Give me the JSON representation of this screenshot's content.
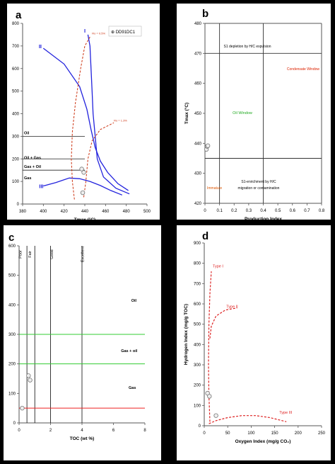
{
  "chart_data": [
    {
      "type": "line",
      "panel_label": "a",
      "xlabel": "Tmax (°C)",
      "ylabel": "Hydrogen Index (mg/g TOC)",
      "xlim": [
        380,
        500
      ],
      "ylim": [
        0,
        800
      ],
      "xticks": [
        "380",
        "400",
        "420",
        "440",
        "460",
        "480",
        "500"
      ],
      "yticks": [
        "0",
        "100",
        "200",
        "300",
        "400",
        "500",
        "600",
        "700",
        "800"
      ],
      "legend": "⊕ DD91DC1",
      "series": [
        {
          "name": "I",
          "color": "#2222dd",
          "points": [
            [
              443,
              750
            ],
            [
              445,
              700
            ],
            [
              446,
              600
            ],
            [
              447,
              500
            ],
            [
              448,
              400
            ],
            [
              450,
              300
            ],
            [
              452,
              200
            ],
            [
              458,
              120
            ],
            [
              470,
              70
            ],
            [
              483,
              45
            ]
          ]
        },
        {
          "name": "II",
          "color": "#2222dd",
          "points": [
            [
              400,
              690
            ],
            [
              420,
              620
            ],
            [
              435,
              520
            ],
            [
              442,
              420
            ],
            [
              446,
              330
            ],
            [
              450,
              250
            ],
            [
              455,
              190
            ],
            [
              462,
              140
            ],
            [
              472,
              90
            ],
            [
              482,
              60
            ]
          ]
        },
        {
          "name": "III",
          "color": "#2222dd",
          "points": [
            [
              400,
              80
            ],
            [
              412,
              95
            ],
            [
              425,
              115
            ],
            [
              435,
              112
            ],
            [
              445,
              100
            ],
            [
              455,
              82
            ],
            [
              465,
              60
            ],
            [
              476,
              40
            ]
          ]
        }
      ],
      "iso_lines": [
        {
          "label": "Ro = 0.5%",
          "color": "#cc3311",
          "points": [
            [
              430,
              20
            ],
            [
              428,
              100
            ],
            [
              427,
              200
            ],
            [
              428,
              320
            ],
            [
              431,
              450
            ],
            [
              436,
              600
            ],
            [
              440,
              700
            ],
            [
              445,
              740
            ]
          ]
        },
        {
          "label": "Ro = 1.3%",
          "color": "#cc3311",
          "points": [
            [
              439,
              30
            ],
            [
              441,
              100
            ],
            [
              443,
              200
            ],
            [
              447,
              280
            ],
            [
              455,
              330
            ],
            [
              468,
              360
            ]
          ]
        }
      ],
      "zones": [
        {
          "label": "Oil",
          "hi": 300
        },
        {
          "label": "Oil + Gas",
          "hi": 200
        },
        {
          "label": "Gas + Oil",
          "hi": 150
        },
        {
          "label": "Gas",
          "hi": ""
        }
      ],
      "zone_lines_hi": [
        300,
        200,
        150
      ],
      "samples": [
        [
          437,
          155
        ],
        [
          439,
          140
        ],
        [
          438,
          50
        ]
      ]
    },
    {
      "type": "scatter",
      "panel_label": "b",
      "xlabel": "Production Index",
      "ylabel": "Tmax (°C)",
      "xlim": [
        0,
        0.8
      ],
      "ylim": [
        420,
        480
      ],
      "xticks": [
        "0",
        "0.1",
        "0.2",
        "0.3",
        "0.4",
        "0.5",
        "0.6",
        "0.7",
        "0.8"
      ],
      "yticks": [
        "420",
        "430",
        "440",
        "450",
        "460",
        "470",
        "480"
      ],
      "hlines": [
        470,
        435
      ],
      "vlines": [
        0.1,
        0.4
      ],
      "annotations": [
        {
          "text": "S1 depletion by H/C expulsion",
          "color": "#000000"
        },
        {
          "text": "Condensate Window",
          "color": "#dd2200"
        },
        {
          "text": "Oil Window",
          "color": "#22aa22"
        },
        {
          "text": "S1-enrichment by H/C migration or contamination",
          "color": "#000000"
        },
        {
          "text": "Immature",
          "color": "#dd5500"
        }
      ],
      "samples": [
        [
          0.01,
          438
        ],
        [
          0.015,
          439
        ],
        [
          0.02,
          439.2
        ]
      ]
    },
    {
      "type": "scatter",
      "panel_label": "c",
      "xlabel": "TOC (wt %)",
      "ylabel": "Hydrogen Index (mg/g TOC)",
      "xlim": [
        0,
        8
      ],
      "ylim": [
        0,
        600
      ],
      "xticks": [
        "0",
        "2",
        "4",
        "6",
        "8"
      ],
      "yticks": [
        "0",
        "100",
        "200",
        "300",
        "400",
        "500",
        "600"
      ],
      "quality_lines": [
        0.5,
        1,
        2,
        4
      ],
      "quality_labels": [
        "Poor",
        "Fair",
        "Good",
        "Excellent"
      ],
      "green_lines": [
        300,
        200
      ],
      "red_line": 50,
      "zones": [
        "Oil",
        "Gas + oil",
        "Gas"
      ],
      "samples": [
        [
          0.2,
          50
        ],
        [
          0.6,
          160
        ],
        [
          0.7,
          145
        ]
      ]
    },
    {
      "type": "line",
      "panel_label": "d",
      "xlabel": "Oxygen Index (mg/g CO₂)",
      "ylabel": "Hydrogen Index (mg/g TOC)",
      "xlim": [
        0,
        250
      ],
      "ylim": [
        0,
        900
      ],
      "xticks": [
        "0",
        "50",
        "100",
        "150",
        "200",
        "250"
      ],
      "yticks": [
        "0",
        "100",
        "200",
        "300",
        "400",
        "500",
        "600",
        "700",
        "800",
        "900"
      ],
      "series": [
        {
          "name": "Type I",
          "color": "#dd2222",
          "points": [
            [
              12,
              20
            ],
            [
              10,
              150
            ],
            [
              9,
              300
            ],
            [
              10,
              500
            ],
            [
              12,
              650
            ],
            [
              15,
              760
            ]
          ]
        },
        {
          "name": "Type II",
          "color": "#dd2222",
          "points": [
            [
              12,
              430
            ],
            [
              15,
              490
            ],
            [
              25,
              540
            ],
            [
              45,
              570
            ],
            [
              70,
              580
            ]
          ]
        },
        {
          "name": "Type III",
          "color": "#dd2222",
          "points": [
            [
              10,
              10
            ],
            [
              25,
              25
            ],
            [
              50,
              40
            ],
            [
              80,
              50
            ],
            [
              110,
              50
            ],
            [
              140,
              40
            ],
            [
              175,
              20
            ]
          ]
        }
      ],
      "samples": [
        [
          7,
          160
        ],
        [
          11,
          145
        ],
        [
          25,
          50
        ]
      ]
    }
  ]
}
